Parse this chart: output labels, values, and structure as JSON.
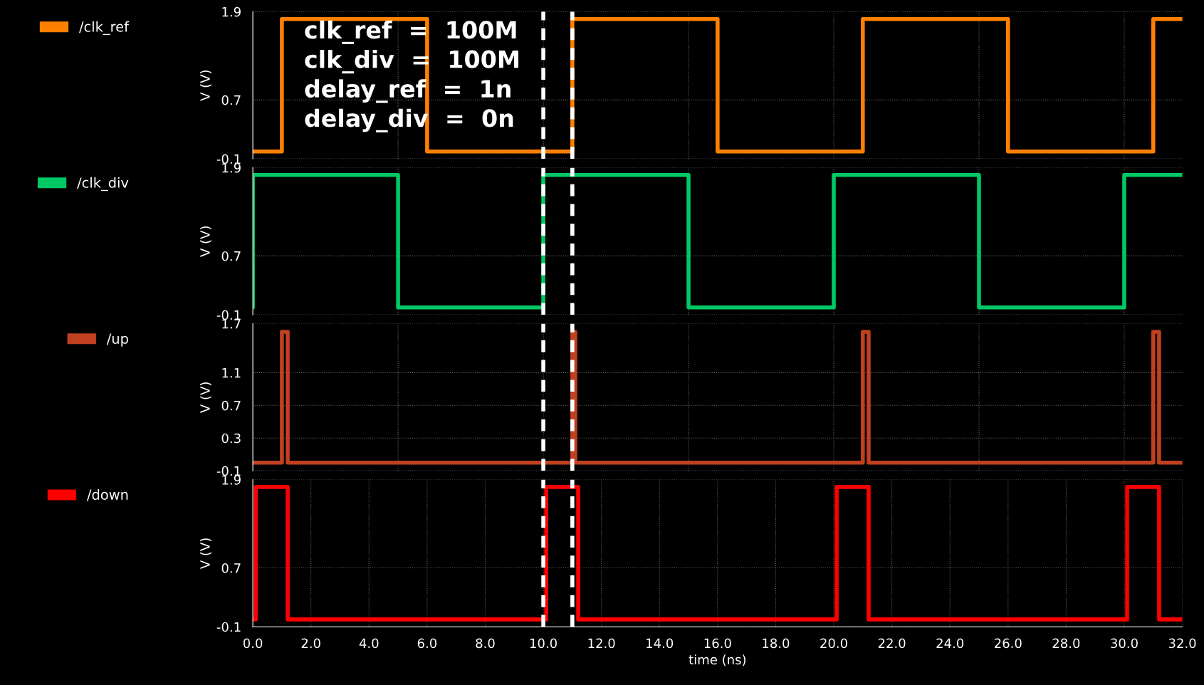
{
  "chart_data": [
    {
      "type": "line",
      "ylabel": "V (V)",
      "xlim": [
        0,
        32
      ],
      "ylim": [
        -0.1,
        1.9
      ],
      "yticks": [
        -0.1,
        0.7,
        1.9
      ],
      "tick_labels": "y",
      "grid": true,
      "legend": "left",
      "series": [
        {
          "name": "/clk_ref",
          "color": "#ff8000",
          "x": [
            0,
            1,
            1,
            6,
            6,
            11,
            11,
            16,
            16,
            21,
            21,
            26,
            26,
            31,
            31,
            32
          ],
          "values": [
            0,
            0,
            1.8,
            1.8,
            0,
            0,
            1.8,
            1.8,
            0,
            0,
            1.8,
            1.8,
            0,
            0,
            1.8,
            1.8
          ]
        }
      ],
      "ref_lines": [
        {
          "axis": "x",
          "value": 10,
          "color": "#ffffff",
          "line_style": "dashed"
        },
        {
          "axis": "x",
          "value": 11,
          "color": "#ffffff",
          "line_style": "dashed"
        }
      ],
      "annotations": [
        "clk_ref  =  100M",
        "clk_div  =  100M",
        "delay_ref  =  1n",
        "delay_div  =  0n"
      ]
    },
    {
      "type": "line",
      "ylabel": "V (V)",
      "xlim": [
        0,
        32
      ],
      "ylim": [
        -0.1,
        1.9
      ],
      "yticks": [
        -0.1,
        0.7,
        1.9
      ],
      "tick_labels": "y",
      "grid": true,
      "legend": "left",
      "series": [
        {
          "name": "/clk_div",
          "color": "#00c864",
          "x": [
            0,
            0,
            5,
            5,
            10,
            10,
            15,
            15,
            20,
            20,
            25,
            25,
            30,
            30,
            32
          ],
          "values": [
            0,
            1.8,
            1.8,
            0,
            0,
            1.8,
            1.8,
            0,
            0,
            1.8,
            1.8,
            0,
            0,
            1.8,
            1.8
          ]
        }
      ],
      "ref_lines": [
        {
          "axis": "x",
          "value": 10,
          "color": "#ffffff",
          "line_style": "dashed"
        },
        {
          "axis": "x",
          "value": 11,
          "color": "#ffffff",
          "line_style": "dashed"
        }
      ]
    },
    {
      "type": "line",
      "ylabel": "V (V)",
      "xlim": [
        0,
        32
      ],
      "ylim": [
        -0.1,
        1.7
      ],
      "yticks": [
        -0.1,
        0.3,
        0.7,
        1.1,
        1.7
      ],
      "tick_labels": "y",
      "grid": true,
      "legend": "left",
      "series": [
        {
          "name": "/up",
          "color": "#c04020",
          "x": [
            0,
            1,
            1,
            1.2,
            1.2,
            11,
            11,
            11.1,
            11.1,
            21,
            21,
            21.2,
            21.2,
            31,
            31,
            31.2,
            31.2,
            32
          ],
          "values": [
            0,
            0,
            1.6,
            1.6,
            0,
            0,
            1.6,
            1.6,
            0,
            0,
            1.6,
            1.6,
            0,
            0,
            1.6,
            1.6,
            0,
            0
          ]
        }
      ],
      "ref_lines": [
        {
          "axis": "x",
          "value": 10,
          "color": "#ffffff",
          "line_style": "dashed"
        },
        {
          "axis": "x",
          "value": 11,
          "color": "#ffffff",
          "line_style": "dashed"
        }
      ]
    },
    {
      "type": "line",
      "ylabel": "V (V)",
      "xlabel": "time (ns)",
      "xlim": [
        0,
        32
      ],
      "ylim": [
        -0.1,
        1.9
      ],
      "yticks": [
        -0.1,
        0.7,
        1.9
      ],
      "xticks": [
        {
          "value": 0,
          "label": "0.0"
        },
        {
          "value": 2,
          "label": "2.0"
        },
        {
          "value": 4,
          "label": "4.0"
        },
        {
          "value": 6,
          "label": "6.0"
        },
        {
          "value": 8,
          "label": "8.0"
        },
        {
          "value": 10,
          "label": "10.0"
        },
        {
          "value": 12,
          "label": "12.0"
        },
        {
          "value": 14,
          "label": "14.0"
        },
        {
          "value": 16,
          "label": "16.0"
        },
        {
          "value": 18,
          "label": "18.0"
        },
        {
          "value": 20,
          "label": "20.0"
        },
        {
          "value": 22,
          "label": "22.0"
        },
        {
          "value": 24,
          "label": "24.0"
        },
        {
          "value": 26,
          "label": "26.0"
        },
        {
          "value": 28,
          "label": "28.0"
        },
        {
          "value": 30,
          "label": "30.0"
        },
        {
          "value": 32,
          "label": "32.0"
        }
      ],
      "grid": true,
      "legend": "left",
      "series": [
        {
          "name": "/down",
          "color": "#ff0000",
          "x": [
            0,
            0.1,
            0.1,
            1.2,
            1.2,
            10.1,
            10.1,
            11.2,
            11.2,
            20.1,
            20.1,
            21.2,
            21.2,
            30.1,
            30.1,
            31.2,
            31.2,
            32
          ],
          "values": [
            0,
            0,
            1.8,
            1.8,
            0,
            0,
            1.8,
            1.8,
            0,
            0,
            1.8,
            1.8,
            0,
            0,
            1.8,
            1.8,
            0,
            0
          ]
        }
      ],
      "ref_lines": [
        {
          "axis": "x",
          "value": 10,
          "color": "#ffffff",
          "line_style": "dashed"
        },
        {
          "axis": "x",
          "value": 11,
          "color": "#ffffff",
          "line_style": "dashed"
        }
      ]
    }
  ]
}
